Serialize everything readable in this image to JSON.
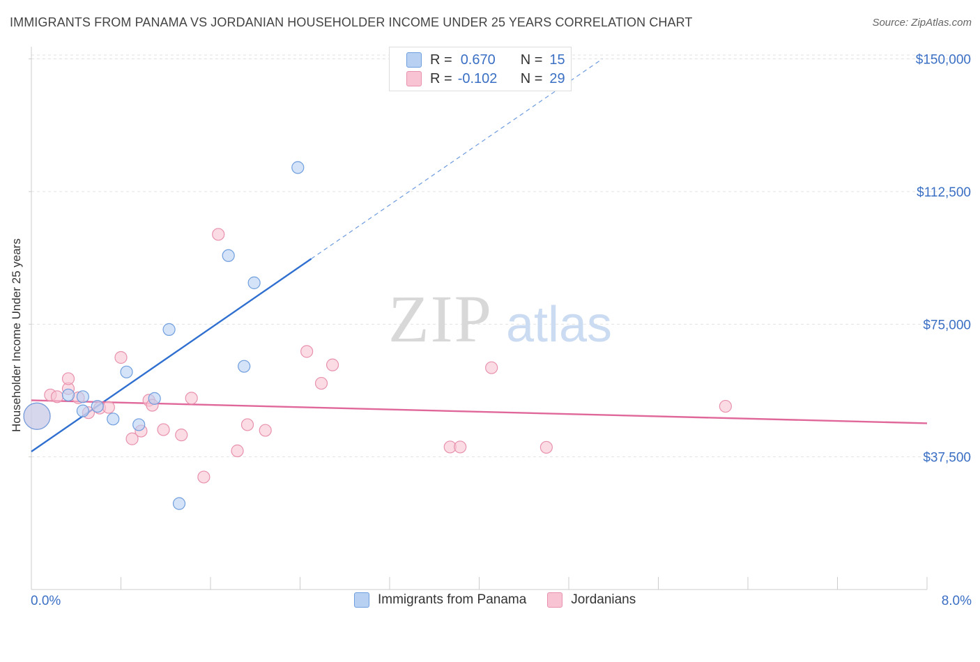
{
  "header": {
    "title": "IMMIGRANTS FROM PANAMA VS JORDANIAN HOUSEHOLDER INCOME UNDER 25 YEARS CORRELATION CHART",
    "source": "Source: ZipAtlas.com"
  },
  "watermark": {
    "zip": "ZIP",
    "atlas": "atlas"
  },
  "legend_top": [
    {
      "r_label": "R =",
      "r_value": "0.670",
      "n_label": "N =",
      "n_value": "15",
      "color": "#b8d0f2",
      "border": "#6f9ede"
    },
    {
      "r_label": "R =",
      "r_value": "-0.102",
      "n_label": "N =",
      "n_value": "29",
      "color": "#f8c4d4",
      "border": "#e891ad"
    }
  ],
  "legend_bottom": [
    {
      "label": "Immigrants from Panama",
      "color": "#b8d0f2",
      "border": "#6f9ede"
    },
    {
      "label": "Jordanians",
      "color": "#f8c4d4",
      "border": "#e891ad"
    }
  ],
  "x_axis": {
    "min_label": "0.0%",
    "max_label": "8.0%"
  },
  "chart_data": {
    "type": "scatter",
    "title": "IMMIGRANTS FROM PANAMA VS JORDANIAN HOUSEHOLDER INCOME UNDER 25 YEARS CORRELATION CHART",
    "xlabel": "",
    "ylabel": "Householder Income Under 25 years",
    "xlim": [
      0,
      8
    ],
    "ylim": [
      0,
      157000
    ],
    "y_ticks": [
      {
        "value": 37500,
        "label": "$37,500"
      },
      {
        "value": 75000,
        "label": "$75,000"
      },
      {
        "value": 112500,
        "label": "$112,500"
      },
      {
        "value": 150000,
        "label": "$150,000"
      }
    ],
    "x_tick_values": [
      0.8,
      1.6,
      2.4,
      3.2,
      4.0,
      4.8,
      5.6,
      6.4,
      7.2,
      8.0
    ],
    "series": [
      {
        "name": "Immigrants from Panama",
        "color": "#b8d0f2",
        "stroke": "#6f9ede",
        "line_color": "#2f6fd0",
        "points": [
          {
            "x": 0.05,
            "y": 49000,
            "big": true
          },
          {
            "x": 0.33,
            "y": 55000
          },
          {
            "x": 0.46,
            "y": 54500
          },
          {
            "x": 0.46,
            "y": 50500
          },
          {
            "x": 0.59,
            "y": 51800
          },
          {
            "x": 0.73,
            "y": 48200
          },
          {
            "x": 0.85,
            "y": 61500
          },
          {
            "x": 0.96,
            "y": 46600
          },
          {
            "x": 1.1,
            "y": 54000
          },
          {
            "x": 1.23,
            "y": 73500
          },
          {
            "x": 1.32,
            "y": 24300
          },
          {
            "x": 1.76,
            "y": 94400
          },
          {
            "x": 1.99,
            "y": 86700
          },
          {
            "x": 1.9,
            "y": 63100
          },
          {
            "x": 2.38,
            "y": 119300
          }
        ],
        "trend_solid": [
          [
            0.0,
            39000
          ],
          [
            2.5,
            93500
          ]
        ],
        "trend_dashed": [
          [
            2.5,
            93500
          ],
          [
            5.1,
            150000
          ]
        ]
      },
      {
        "name": "Jordanians",
        "color": "#f8c4d4",
        "stroke": "#e891ad",
        "line_color": "#e0679a",
        "points": [
          {
            "x": 0.05,
            "y": 49000,
            "big": true
          },
          {
            "x": 0.17,
            "y": 55000
          },
          {
            "x": 0.23,
            "y": 54500
          },
          {
            "x": 0.33,
            "y": 56800
          },
          {
            "x": 0.33,
            "y": 59600
          },
          {
            "x": 0.42,
            "y": 54200
          },
          {
            "x": 0.51,
            "y": 50000
          },
          {
            "x": 0.61,
            "y": 51300
          },
          {
            "x": 0.69,
            "y": 51500
          },
          {
            "x": 0.8,
            "y": 65600
          },
          {
            "x": 0.9,
            "y": 42600
          },
          {
            "x": 0.98,
            "y": 44800
          },
          {
            "x": 1.05,
            "y": 53500
          },
          {
            "x": 1.08,
            "y": 52100
          },
          {
            "x": 1.18,
            "y": 45200
          },
          {
            "x": 1.34,
            "y": 43700
          },
          {
            "x": 1.43,
            "y": 54100
          },
          {
            "x": 1.54,
            "y": 31800
          },
          {
            "x": 1.67,
            "y": 100400
          },
          {
            "x": 1.84,
            "y": 39200
          },
          {
            "x": 1.93,
            "y": 46600
          },
          {
            "x": 2.09,
            "y": 45000
          },
          {
            "x": 2.46,
            "y": 67300
          },
          {
            "x": 2.59,
            "y": 58300
          },
          {
            "x": 2.69,
            "y": 63500
          },
          {
            "x": 3.74,
            "y": 40300
          },
          {
            "x": 3.83,
            "y": 40300
          },
          {
            "x": 4.11,
            "y": 62700
          },
          {
            "x": 4.6,
            "y": 40200
          },
          {
            "x": 6.2,
            "y": 51800
          }
        ],
        "trend_solid": [
          [
            0.0,
            53500
          ],
          [
            8.0,
            47000
          ]
        ]
      }
    ]
  }
}
